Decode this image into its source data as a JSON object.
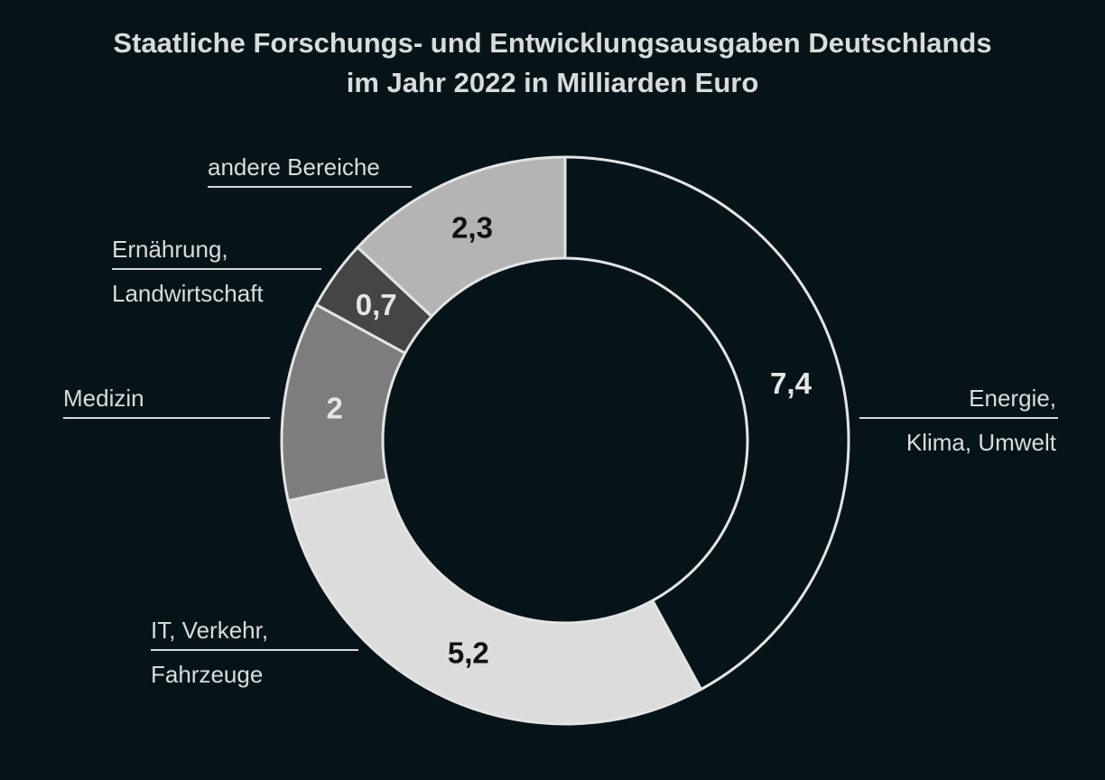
{
  "chart_data": {
    "type": "pie",
    "title": "Staatliche Forschungs- und Entwicklungsausgaben Deutschlands im Jahr 2022 in Milliarden Euro",
    "title_lines": [
      "Staatliche Forschungs- und Entwicklungsausgaben Deutschlands",
      "im Jahr 2022 in Milliarden Euro"
    ],
    "donut": true,
    "slices": [
      {
        "label_lines": [
          "Energie,",
          "Klima, Umwelt"
        ],
        "value": 7.4,
        "value_label": "7,4",
        "color": "#061419"
      },
      {
        "label_lines": [
          "IT, Verkehr,",
          "Fahrzeuge"
        ],
        "value": 5.2,
        "value_label": "5,2",
        "color": "#dcdcdc"
      },
      {
        "label_lines": [
          "Medizin"
        ],
        "value": 2,
        "value_label": "2",
        "color": "#7d7d7d"
      },
      {
        "label_lines": [
          "Ernährung,",
          "Landwirtschaft"
        ],
        "value": 0.7,
        "value_label": "0,7",
        "color": "#454545"
      },
      {
        "label_lines": [
          "andere Bereiche"
        ],
        "value": 2.3,
        "value_label": "2,3",
        "color": "#b4b4b4"
      }
    ],
    "legend": "none"
  }
}
